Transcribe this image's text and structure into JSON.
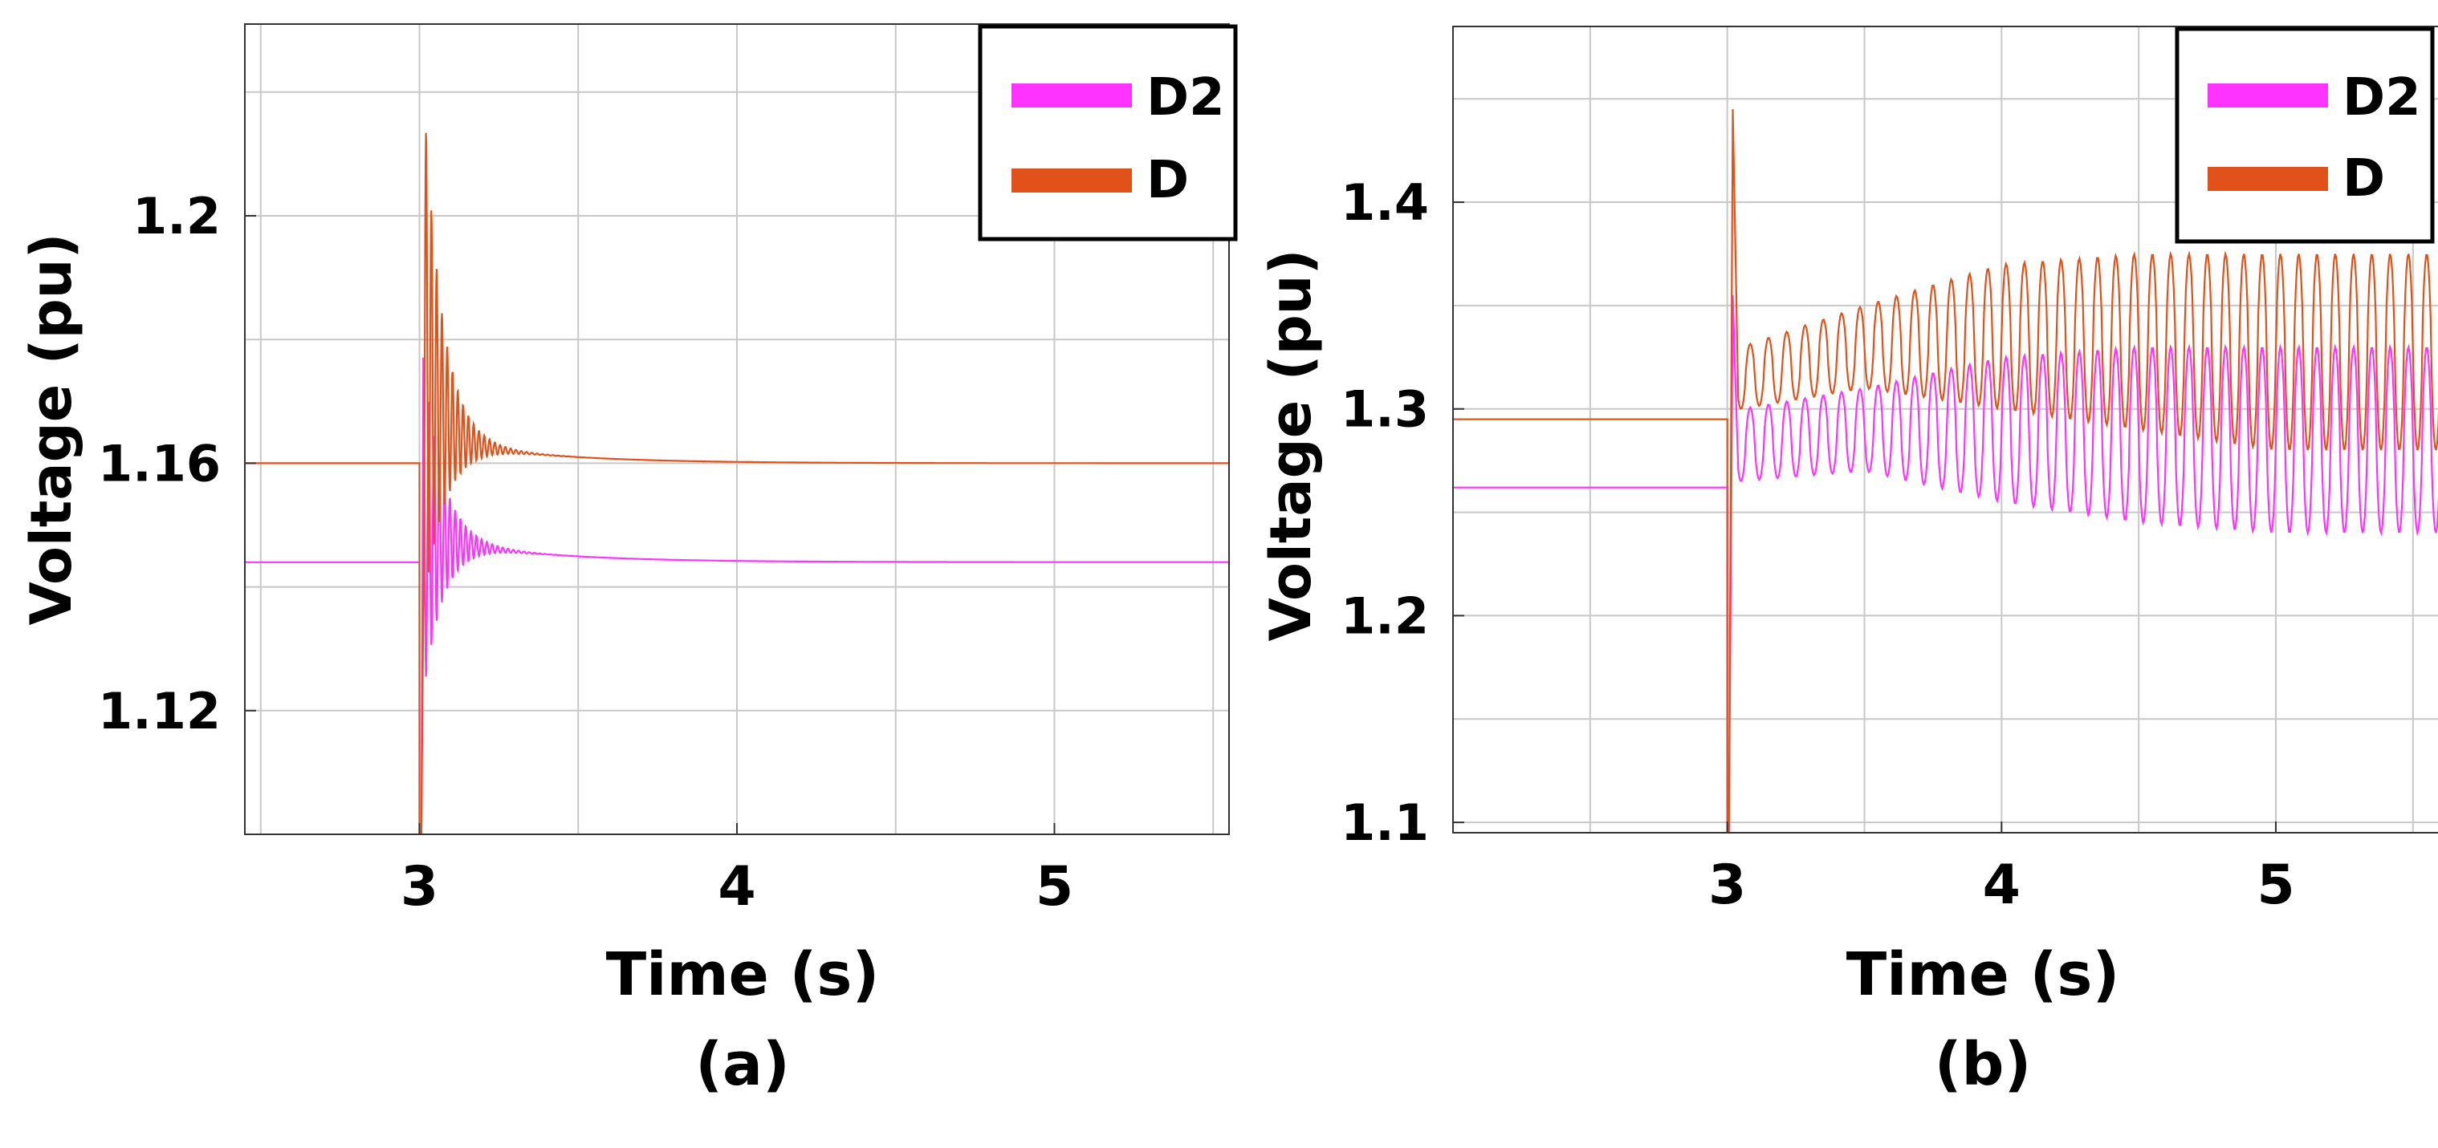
{
  "chart_data": [
    {
      "type": "line",
      "panel_label": "(a)",
      "xlabel": "Time (s)",
      "ylabel": "Voltage (pu)",
      "xlim": [
        2.45,
        5.55
      ],
      "ylim": [
        1.1,
        1.231
      ],
      "xticks": [
        3,
        4,
        5
      ],
      "xtick_labels": [
        "3",
        "4",
        "5"
      ],
      "yticks": [
        1.12,
        1.16,
        1.2
      ],
      "ytick_labels": [
        "1.12",
        "1.16",
        "1.2"
      ],
      "x_gridlines": [
        2.5,
        3,
        3.5,
        4,
        4.5,
        5,
        5.5
      ],
      "y_gridlines": [
        1.12,
        1.14,
        1.16,
        1.18,
        1.2,
        1.22
      ],
      "grid": true,
      "legend_position": "top-right",
      "series": [
        {
          "name": "D2",
          "color": "#ff33ff",
          "pre_event_level": 1.144,
          "event_time": 3.0,
          "settled_level": 1.144,
          "transient_peak": 1.18,
          "transient_trough": 1.112,
          "decay_time_constant": 0.06,
          "oscillation_frequency_hz": 60,
          "post_offset": 0.0043,
          "post_decay_time": 0.33,
          "dip_min": 1.1
        },
        {
          "name": "D",
          "color": "#e0521a",
          "pre_event_level": 1.16,
          "event_time": 3.0,
          "settled_level": 1.16,
          "transient_peak": 1.231,
          "transient_trough": 1.126,
          "decay_time_constant": 0.06,
          "oscillation_frequency_hz": 60,
          "post_offset": 0.0045,
          "post_decay_time": 0.33,
          "dip_min": 1.1
        }
      ]
    },
    {
      "type": "line",
      "panel_label": "(b)",
      "xlabel": "Time (s)",
      "ylabel": "Voltage (pu)",
      "xlim": [
        2.0,
        5.6
      ],
      "ylim": [
        1.095,
        1.485
      ],
      "xticks": [
        3,
        4,
        5
      ],
      "xtick_labels": [
        "3",
        "4",
        "5"
      ],
      "yticks": [
        1.1,
        1.2,
        1.3,
        1.4
      ],
      "ytick_labels": [
        "1.1",
        "1.2",
        "1.3",
        "1.4"
      ],
      "x_gridlines": [
        2.5,
        3,
        3.5,
        4,
        4.5,
        5,
        5.5
      ],
      "y_gridlines": [
        1.1,
        1.15,
        1.2,
        1.25,
        1.3,
        1.35,
        1.4,
        1.45
      ],
      "grid": true,
      "legend_position": "top-right",
      "series": [
        {
          "name": "D2",
          "color": "#ff33ff",
          "pre_event_level": 1.262,
          "event_time": 3.0,
          "initial_spike": 1.355,
          "oscillation_frequency_hz": 15,
          "band_low": [
            [
              3.05,
              1.265
            ],
            [
              3.5,
              1.27
            ],
            [
              4.0,
              1.255
            ],
            [
              4.5,
              1.245
            ],
            [
              5.0,
              1.24
            ],
            [
              5.6,
              1.24
            ]
          ],
          "band_high": [
            [
              3.05,
              1.3
            ],
            [
              3.5,
              1.31
            ],
            [
              4.0,
              1.325
            ],
            [
              4.5,
              1.33
            ],
            [
              5.0,
              1.33
            ],
            [
              5.6,
              1.33
            ]
          ],
          "dip_min": 1.095
        },
        {
          "name": "D",
          "color": "#e0521a",
          "pre_event_level": 1.295,
          "event_time": 3.0,
          "initial_spike": 1.445,
          "oscillation_frequency_hz": 15,
          "band_low": [
            [
              3.05,
              1.3
            ],
            [
              3.5,
              1.31
            ],
            [
              4.0,
              1.3
            ],
            [
              4.5,
              1.29
            ],
            [
              5.0,
              1.28
            ],
            [
              5.6,
              1.28
            ]
          ],
          "band_high": [
            [
              3.05,
              1.33
            ],
            [
              3.5,
              1.35
            ],
            [
              4.0,
              1.37
            ],
            [
              4.5,
              1.375
            ],
            [
              5.0,
              1.375
            ],
            [
              5.6,
              1.375
            ]
          ],
          "dip_min": 1.095
        }
      ]
    }
  ]
}
